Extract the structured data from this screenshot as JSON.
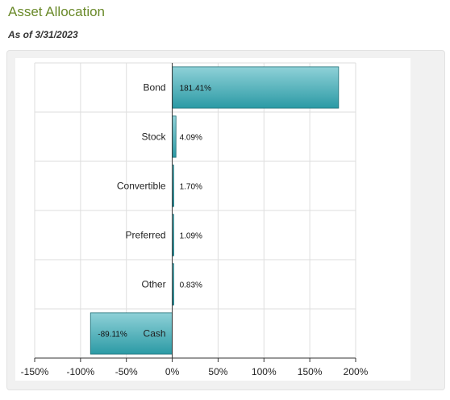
{
  "header": {
    "title": "Asset Allocation",
    "as_of": "As of 3/31/2023"
  },
  "colors": {
    "title": "#6a8a2a",
    "bar_top": "#8fd1d8",
    "bar_bottom": "#2b9aa5",
    "bar_stroke": "#1e6f77"
  },
  "chart_data": {
    "type": "bar",
    "orientation": "horizontal",
    "categories": [
      "Bond",
      "Stock",
      "Convertible",
      "Preferred",
      "Other",
      "Cash"
    ],
    "values": [
      181.41,
      4.09,
      1.7,
      1.09,
      0.83,
      -89.11
    ],
    "data_labels": [
      "181.41%",
      "4.09%",
      "1.70%",
      "1.09%",
      "0.83%",
      "-89.11%"
    ],
    "xlim": [
      -150,
      200
    ],
    "xticks": [
      -150,
      -100,
      -50,
      0,
      50,
      100,
      150,
      200
    ],
    "xtick_labels": [
      "-150%",
      "-100%",
      "-50%",
      "0%",
      "50%",
      "100%",
      "150%",
      "200%"
    ],
    "grid": true,
    "legend": "none"
  }
}
